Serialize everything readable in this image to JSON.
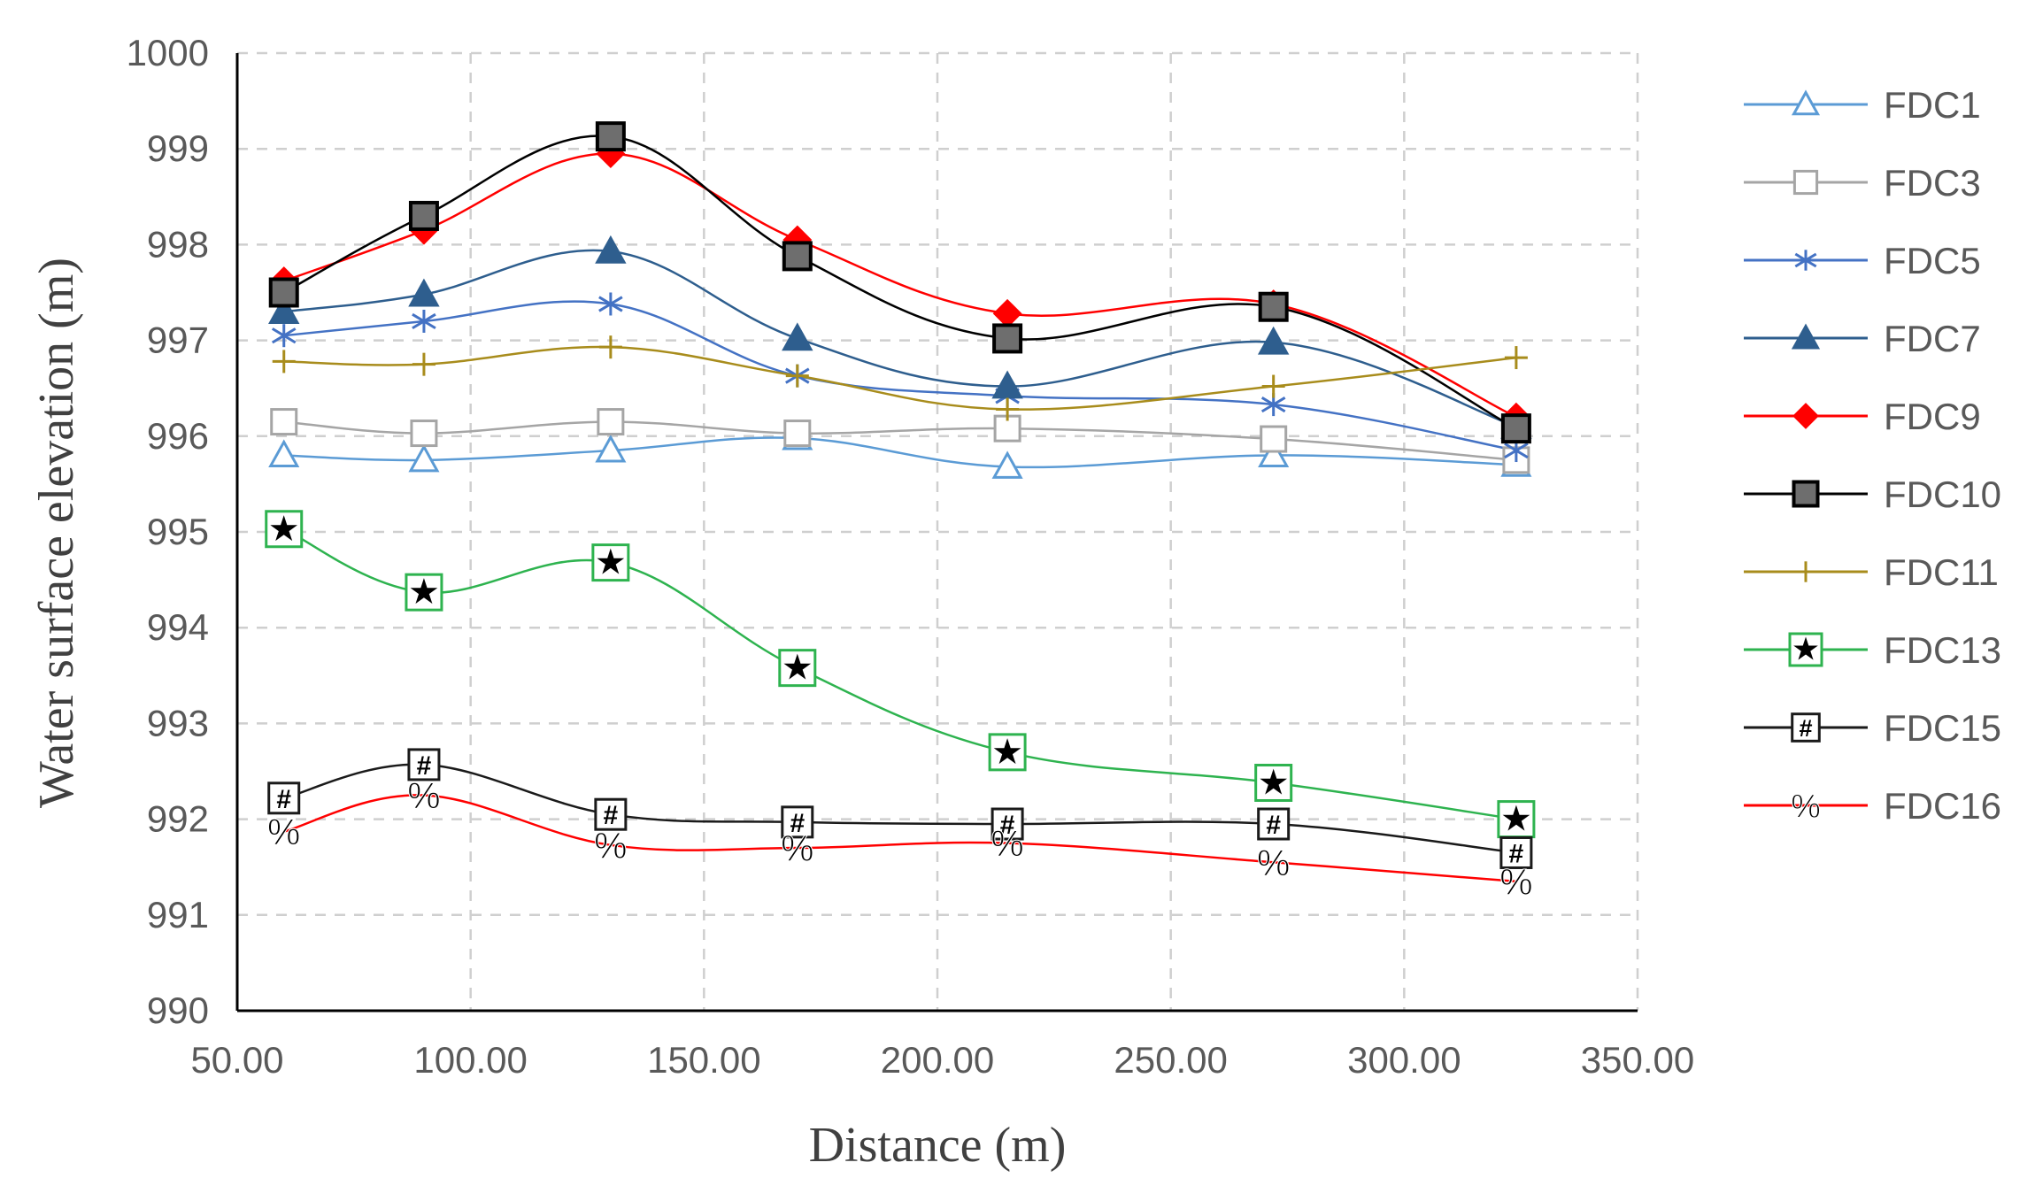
{
  "chart_data": {
    "type": "line",
    "title": "",
    "xlabel": "Distance (m)",
    "ylabel": "Water surface elevation (m)",
    "xlim": [
      50,
      350
    ],
    "ylim": [
      990,
      1000
    ],
    "grid": true,
    "legend_position": "right",
    "x_ticks": [
      "50.00",
      "100.00",
      "150.00",
      "200.00",
      "250.00",
      "300.00",
      "350.00"
    ],
    "y_ticks": [
      "990",
      "991",
      "992",
      "993",
      "994",
      "995",
      "996",
      "997",
      "998",
      "999",
      "1000"
    ],
    "x": [
      60,
      90,
      130,
      170,
      215,
      272,
      324
    ],
    "series": [
      {
        "name": "FDC1",
        "color": "#5b9bd5",
        "marker": "triangle-open",
        "values": [
          995.8,
          995.75,
          995.85,
          995.98,
          995.68,
          995.8,
          995.7
        ]
      },
      {
        "name": "FDC3",
        "color": "#a5a5a5",
        "marker": "square-open",
        "values": [
          996.15,
          996.03,
          996.15,
          996.03,
          996.08,
          995.97,
          995.75
        ]
      },
      {
        "name": "FDC5",
        "color": "#4472c4",
        "marker": "asterisk",
        "values": [
          997.05,
          997.2,
          997.38,
          996.63,
          996.42,
          996.33,
          995.85
        ]
      },
      {
        "name": "FDC7",
        "color": "#2e5e8e",
        "marker": "triangle-filled",
        "values": [
          997.3,
          997.48,
          997.93,
          997.02,
          996.52,
          996.98,
          996.1
        ]
      },
      {
        "name": "FDC9",
        "color": "#ff0000",
        "marker": "diamond-filled",
        "values": [
          997.62,
          998.15,
          998.95,
          998.05,
          997.28,
          997.38,
          996.2
        ]
      },
      {
        "name": "FDC10",
        "color": "#000000",
        "marker": "square-gray",
        "values": [
          997.5,
          998.3,
          999.13,
          997.88,
          997.02,
          997.35,
          996.08
        ]
      },
      {
        "name": "FDC11",
        "color": "#a88c1c",
        "marker": "plus",
        "values": [
          996.78,
          996.75,
          996.93,
          996.63,
          996.28,
          996.52,
          996.82
        ]
      },
      {
        "name": "FDC13",
        "color": "#2eb34f",
        "marker": "star-box",
        "marker_text": "★",
        "values": [
          995.03,
          994.37,
          994.68,
          993.58,
          992.7,
          992.38,
          992.0
        ]
      },
      {
        "name": "FDC15",
        "color": "#1a1a1a",
        "marker": "hash-box",
        "marker_text": "#",
        "values": [
          992.22,
          992.57,
          992.05,
          991.97,
          991.95,
          991.95,
          991.65
        ]
      },
      {
        "name": "FDC16",
        "color": "#ff0000",
        "marker": "percent",
        "marker_text": "%",
        "values": [
          991.87,
          992.25,
          991.73,
          991.7,
          991.75,
          991.55,
          991.35
        ]
      }
    ]
  }
}
